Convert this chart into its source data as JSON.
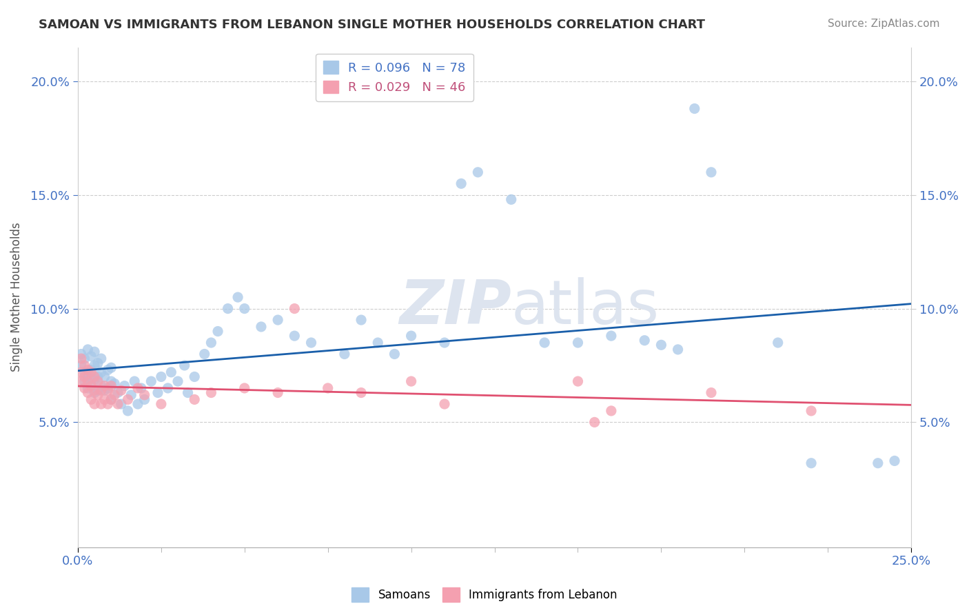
{
  "title": "SAMOAN VS IMMIGRANTS FROM LEBANON SINGLE MOTHER HOUSEHOLDS CORRELATION CHART",
  "source": "Source: ZipAtlas.com",
  "ylabel": "Single Mother Households",
  "xlim": [
    0.0,
    0.25
  ],
  "ylim": [
    -0.005,
    0.215
  ],
  "samoans_color": "#a8c8e8",
  "lebanon_color": "#f4a0b0",
  "samoans_line_color": "#1a5faa",
  "lebanon_line_color": "#e05070",
  "samoans_R": 0.096,
  "samoans_N": 78,
  "lebanon_R": 0.029,
  "lebanon_N": 46,
  "watermark_color": "#dde4ef",
  "samoans_x": [
    0.001,
    0.001,
    0.002,
    0.002,
    0.002,
    0.003,
    0.003,
    0.003,
    0.004,
    0.004,
    0.004,
    0.005,
    0.005,
    0.005,
    0.005,
    0.006,
    0.006,
    0.006,
    0.007,
    0.007,
    0.007,
    0.008,
    0.008,
    0.009,
    0.009,
    0.01,
    0.01,
    0.01,
    0.011,
    0.012,
    0.013,
    0.014,
    0.015,
    0.016,
    0.017,
    0.018,
    0.019,
    0.02,
    0.022,
    0.024,
    0.025,
    0.027,
    0.028,
    0.03,
    0.032,
    0.033,
    0.035,
    0.038,
    0.04,
    0.042,
    0.045,
    0.048,
    0.05,
    0.055,
    0.06,
    0.065,
    0.07,
    0.08,
    0.085,
    0.09,
    0.095,
    0.1,
    0.11,
    0.115,
    0.12,
    0.13,
    0.14,
    0.15,
    0.16,
    0.17,
    0.175,
    0.18,
    0.185,
    0.19,
    0.21,
    0.22,
    0.24,
    0.245
  ],
  "samoans_y": [
    0.075,
    0.08,
    0.068,
    0.072,
    0.078,
    0.065,
    0.07,
    0.082,
    0.067,
    0.073,
    0.079,
    0.063,
    0.069,
    0.075,
    0.081,
    0.064,
    0.07,
    0.076,
    0.066,
    0.072,
    0.078,
    0.064,
    0.07,
    0.065,
    0.073,
    0.06,
    0.068,
    0.074,
    0.067,
    0.063,
    0.058,
    0.066,
    0.055,
    0.062,
    0.068,
    0.058,
    0.065,
    0.06,
    0.068,
    0.063,
    0.07,
    0.065,
    0.072,
    0.068,
    0.075,
    0.063,
    0.07,
    0.08,
    0.085,
    0.09,
    0.1,
    0.105,
    0.1,
    0.092,
    0.095,
    0.088,
    0.085,
    0.08,
    0.095,
    0.085,
    0.08,
    0.088,
    0.085,
    0.155,
    0.16,
    0.148,
    0.085,
    0.085,
    0.088,
    0.086,
    0.084,
    0.082,
    0.188,
    0.16,
    0.085,
    0.032,
    0.032,
    0.033
  ],
  "lebanon_x": [
    0.001,
    0.001,
    0.001,
    0.002,
    0.002,
    0.002,
    0.003,
    0.003,
    0.003,
    0.004,
    0.004,
    0.004,
    0.005,
    0.005,
    0.005,
    0.006,
    0.006,
    0.007,
    0.007,
    0.008,
    0.008,
    0.009,
    0.009,
    0.01,
    0.01,
    0.011,
    0.012,
    0.013,
    0.015,
    0.018,
    0.02,
    0.025,
    0.035,
    0.04,
    0.05,
    0.06,
    0.065,
    0.075,
    0.085,
    0.1,
    0.11,
    0.15,
    0.155,
    0.16,
    0.19,
    0.22
  ],
  "lebanon_y": [
    0.068,
    0.072,
    0.078,
    0.065,
    0.07,
    0.075,
    0.063,
    0.068,
    0.073,
    0.06,
    0.066,
    0.072,
    0.058,
    0.064,
    0.07,
    0.062,
    0.068,
    0.058,
    0.064,
    0.06,
    0.066,
    0.058,
    0.064,
    0.06,
    0.066,
    0.062,
    0.058,
    0.064,
    0.06,
    0.065,
    0.062,
    0.058,
    0.06,
    0.063,
    0.065,
    0.063,
    0.1,
    0.065,
    0.063,
    0.068,
    0.058,
    0.068,
    0.05,
    0.055,
    0.063,
    0.055
  ]
}
